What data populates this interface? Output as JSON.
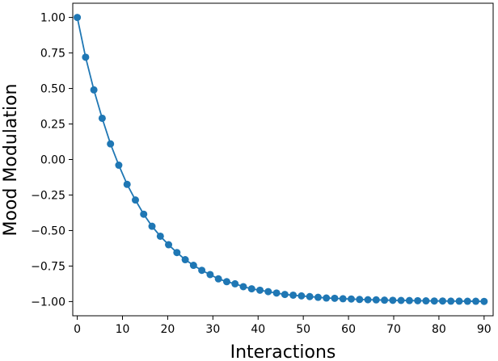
{
  "chart_data": {
    "type": "line",
    "title": "",
    "xlabel": "Interactions",
    "ylabel": "Mood Modulation",
    "xlim": [
      -1,
      92
    ],
    "ylim": [
      -1.1,
      1.1
    ],
    "xticks": [
      0,
      10,
      20,
      30,
      40,
      50,
      60,
      70,
      80,
      90
    ],
    "xtick_labels": [
      "0",
      "10",
      "20",
      "30",
      "40",
      "50",
      "60",
      "70",
      "80",
      "90"
    ],
    "yticks": [
      1.0,
      0.75,
      0.5,
      0.25,
      0.0,
      -0.25,
      -0.5,
      -0.75,
      -1.0
    ],
    "ytick_labels": [
      "1.00",
      "0.75",
      "0.50",
      "0.25",
      "0.00",
      "−0.25",
      "−0.50",
      "−0.75",
      "−1.00"
    ],
    "grid": false,
    "legend": "none",
    "series": [
      {
        "color": "#1f77b4",
        "x": [
          0.0,
          1.84,
          3.67,
          5.51,
          7.35,
          9.18,
          11.02,
          12.86,
          14.69,
          16.53,
          18.37,
          20.2,
          22.04,
          23.88,
          25.71,
          27.55,
          29.39,
          31.22,
          33.06,
          34.9,
          36.73,
          38.57,
          40.41,
          42.24,
          44.08,
          45.92,
          47.76,
          49.59,
          51.43,
          53.27,
          55.1,
          56.94,
          58.78,
          60.61,
          62.45,
          64.29,
          66.12,
          67.96,
          69.8,
          71.63,
          73.47,
          75.31,
          77.14,
          78.98,
          80.82,
          82.65,
          84.49,
          86.33,
          88.16,
          90.0
        ],
        "y": [
          1.0,
          0.72,
          0.49,
          0.29,
          0.11,
          -0.04,
          -0.175,
          -0.285,
          -0.385,
          -0.47,
          -0.54,
          -0.6,
          -0.655,
          -0.705,
          -0.745,
          -0.78,
          -0.81,
          -0.84,
          -0.86,
          -0.875,
          -0.895,
          -0.91,
          -0.92,
          -0.93,
          -0.94,
          -0.95,
          -0.955,
          -0.96,
          -0.965,
          -0.97,
          -0.975,
          -0.977,
          -0.98,
          -0.982,
          -0.985,
          -0.987,
          -0.988,
          -0.99,
          -0.991,
          -0.992,
          -0.993,
          -0.994,
          -0.995,
          -0.996,
          -0.996,
          -0.997,
          -0.997,
          -0.998,
          -0.998,
          -0.999
        ]
      }
    ]
  }
}
